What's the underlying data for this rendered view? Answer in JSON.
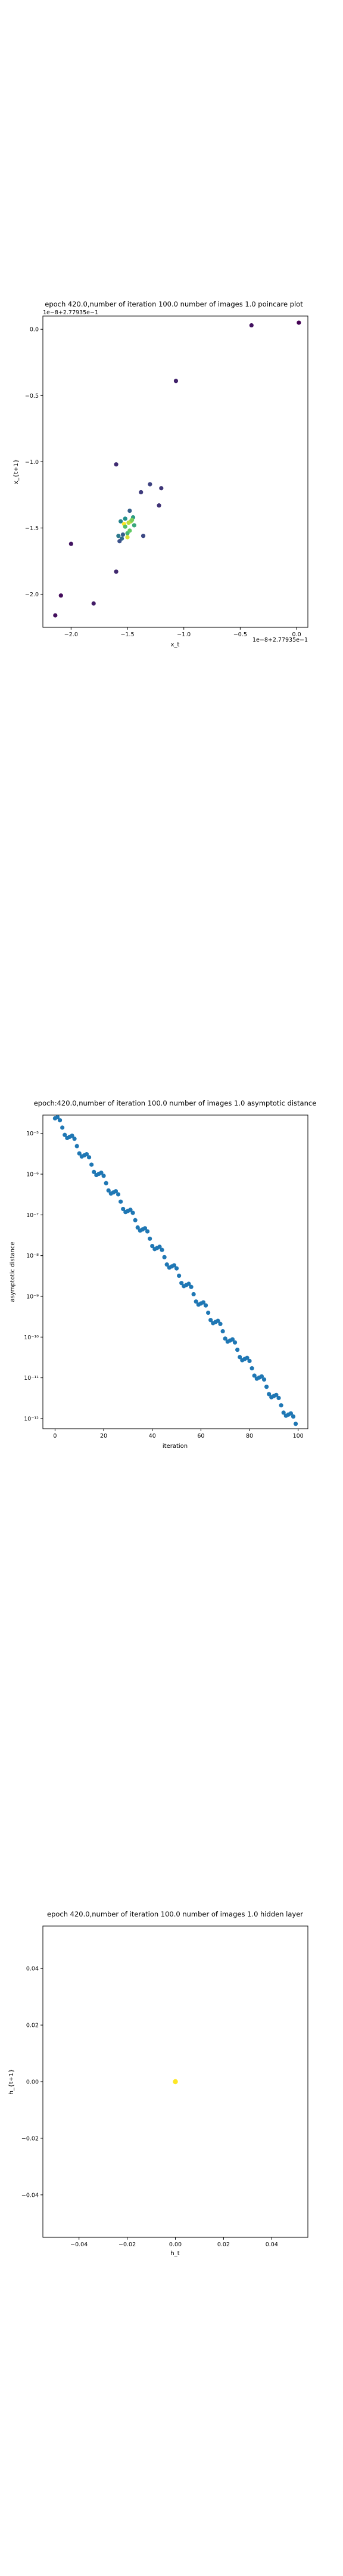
{
  "chart_data": [
    {
      "type": "scatter",
      "title": "epoch 420.0,number of iteration 100.0 number of images 1.0 poincare plot",
      "xlabel": "x_t",
      "ylabel": "x_{t+1}",
      "offset_text": "1e−8+2.77935e−1",
      "top_offset_text": "1e−8+2.77935e−1",
      "xlim": [
        -2.25,
        0.1
      ],
      "ylim": [
        -2.25,
        0.1
      ],
      "xticks": [
        -2.0,
        -1.5,
        -1.0,
        -0.5,
        0.0
      ],
      "xtick_labels": [
        "−2.0",
        "−1.5",
        "−1.0",
        "−0.5",
        "0.0"
      ],
      "yticks": [
        0.0,
        -0.5,
        -1.0,
        -1.5,
        -2.0
      ],
      "ytick_labels": [
        "0.0",
        "−0.5",
        "−1.0",
        "−1.5",
        "−2.0"
      ],
      "grid": false,
      "colormap": "viridis",
      "x": [
        0.02,
        -0.4,
        -1.07,
        -1.6,
        -1.2,
        -1.3,
        -1.48,
        -1.38,
        -1.45,
        -1.47,
        -1.53,
        -1.52,
        -1.58,
        -1.55,
        -1.5,
        -1.49,
        -1.46,
        -1.44,
        -1.52,
        -1.56,
        -1.57,
        -1.54,
        -1.48,
        -1.5,
        -1.36,
        -1.22,
        -1.6,
        -1.8,
        -2.0,
        -2.14,
        -2.09
      ],
      "y": [
        0.05,
        0.03,
        -0.39,
        -1.02,
        -1.2,
        -1.17,
        -1.37,
        -1.23,
        -1.42,
        -1.45,
        -1.47,
        -1.49,
        -1.56,
        -1.58,
        -1.54,
        -1.46,
        -1.44,
        -1.48,
        -1.43,
        -1.45,
        -1.6,
        -1.55,
        -1.52,
        -1.57,
        -1.56,
        -1.33,
        -1.83,
        -2.07,
        -1.62,
        -2.16,
        -2.01
      ],
      "c": [
        0.0,
        0.05,
        0.1,
        0.13,
        0.16,
        0.2,
        0.3,
        0.18,
        0.55,
        0.85,
        1.0,
        0.7,
        0.4,
        0.35,
        0.65,
        0.9,
        0.8,
        0.6,
        0.5,
        0.45,
        0.25,
        0.3,
        0.75,
        0.95,
        0.22,
        0.15,
        0.12,
        0.08,
        0.06,
        0.04,
        0.03
      ]
    },
    {
      "type": "scatter",
      "title": "epoch:420.0,number of iteration 100.0  number of images 1.0 asymptotic distance",
      "xlabel": "iteration",
      "ylabel": "asymptotic distance",
      "yscale": "log",
      "xlim": [
        -5,
        104
      ],
      "ylim_log10": [
        -12.25,
        -4.55
      ],
      "xticks": [
        0,
        20,
        40,
        60,
        80,
        100
      ],
      "xtick_labels": [
        "0",
        "20",
        "40",
        "60",
        "80",
        "100"
      ],
      "yticks_log10": [
        -5,
        -6,
        -7,
        -8,
        -9,
        -10,
        -11,
        -12
      ],
      "ytick_labels": [
        "10⁻⁵",
        "10⁻⁶",
        "10⁻⁷",
        "10⁻⁸",
        "10⁻⁹",
        "10⁻¹⁰",
        "10⁻¹¹",
        "10⁻¹²"
      ],
      "grid": false,
      "color": "#1f77b4",
      "start_log10": -4.63,
      "end_log10": -12.13,
      "n_points": 100
    },
    {
      "type": "scatter",
      "title": "epoch 420.0,number of iteration 100.0  number of images 1.0 hidden layer",
      "xlabel": "h_t",
      "ylabel": "h_{t+1}",
      "xlim": [
        -0.055,
        0.055
      ],
      "ylim": [
        -0.055,
        0.055
      ],
      "xticks": [
        -0.04,
        -0.02,
        0.0,
        0.02,
        0.04
      ],
      "xtick_labels": [
        "−0.04",
        "−0.02",
        "0.00",
        "0.02",
        "0.04"
      ],
      "yticks": [
        0.04,
        0.02,
        0.0,
        -0.02,
        -0.04
      ],
      "ytick_labels": [
        "0.04",
        "0.02",
        "0.00",
        "−0.02",
        "−0.04"
      ],
      "grid": false,
      "x": [
        0.0
      ],
      "y": [
        0.0
      ],
      "color": "#fde725"
    }
  ]
}
